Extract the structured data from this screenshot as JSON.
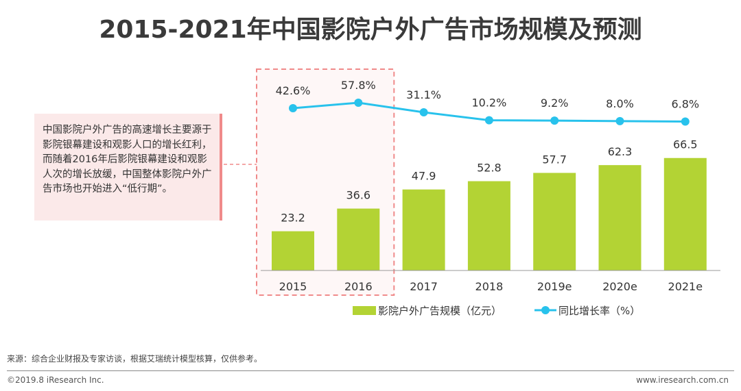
{
  "title": "2015-2021年中国影院户外广告市场规模及预测",
  "callout_text": "中国影院户外广告的高速增长主要源于影院银幕建设和观影人口的增长红利，而随着2016年后影院银幕建设和观影人次的增长放缓，中国整体影院户外广告市场也开始进入“低行期”。",
  "source": "来源：综合企业财报及专家访谈，根据艾瑞统计模型核算，仅供参考。",
  "copyright": "©2019.8 iResearch Inc.",
  "website": "www.iresearch.com.cn",
  "colors": {
    "bar": "#b3d334",
    "line": "#28c2ec",
    "highlight_border": "#f08a8a",
    "callout_bg": "#fbe9e9"
  },
  "chart_data": {
    "type": "bar",
    "categories": [
      "2015",
      "2016",
      "2017",
      "2018",
      "2019e",
      "2020e",
      "2021e"
    ],
    "series": [
      {
        "name": "影院户外广告规模（亿元）",
        "type": "bar",
        "values": [
          23.2,
          36.6,
          47.9,
          52.8,
          57.7,
          62.3,
          66.5
        ],
        "labels": [
          "23.2",
          "36.6",
          "47.9",
          "52.8",
          "57.7",
          "62.3",
          "66.5"
        ]
      },
      {
        "name": "同比增长率（%）",
        "type": "line",
        "values": [
          42.6,
          57.8,
          31.1,
          10.2,
          9.2,
          8.0,
          6.8
        ],
        "labels": [
          "42.6%",
          "57.8%",
          "31.1%",
          "10.2%",
          "9.2%",
          "8.0%",
          "6.8%"
        ]
      }
    ],
    "highlighted_categories": [
      "2015",
      "2016"
    ],
    "legend_position": "bottom",
    "grid": false
  }
}
